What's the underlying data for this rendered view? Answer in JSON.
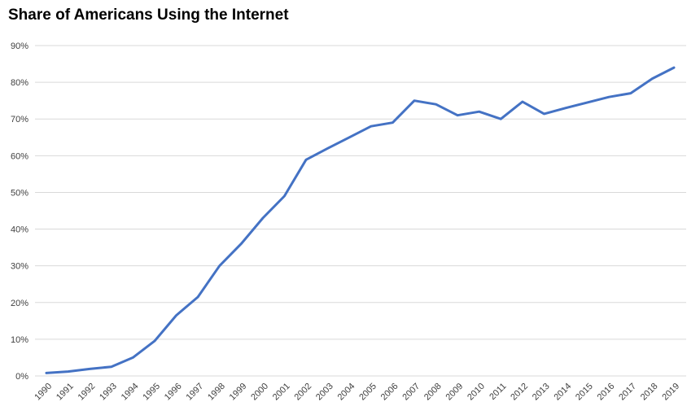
{
  "chart_data": {
    "type": "line",
    "title": "Share of Americans Using the Internet",
    "xlabel": "",
    "ylabel": "",
    "x": [
      "1990",
      "1991",
      "1992",
      "1993",
      "1994",
      "1995",
      "1996",
      "1997",
      "1998",
      "1999",
      "2000",
      "2001",
      "2002",
      "2003",
      "2004",
      "2005",
      "2006",
      "2007",
      "2008",
      "2009",
      "2010",
      "2011",
      "2012",
      "2013",
      "2014",
      "2015",
      "2016",
      "2017",
      "2018",
      "2019"
    ],
    "series": [
      {
        "values": [
          0.8,
          1.2,
          1.9,
          2.5,
          5,
          9.5,
          16.5,
          21.5,
          30,
          36,
          43,
          49,
          58.9,
          62,
          65,
          68,
          69,
          75,
          74,
          71,
          72,
          70,
          74.7,
          71.4,
          73,
          74.5,
          76,
          77,
          81,
          84
        ]
      }
    ],
    "yticks": [
      "0%",
      "10%",
      "20%",
      "30%",
      "40%",
      "50%",
      "60%",
      "70%",
      "80%",
      "90%"
    ],
    "ylim": [
      0,
      90
    ],
    "grid": "horizontal",
    "legend": "none",
    "colors": {
      "line": "#4472C4",
      "grid": "#d9d9d9",
      "tick_text": "#404040"
    }
  }
}
